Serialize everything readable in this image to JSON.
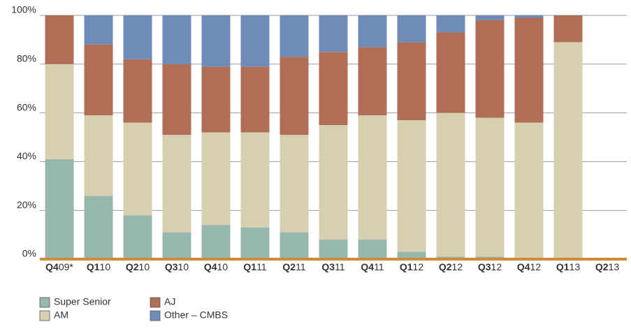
{
  "chart_data": {
    "type": "stacked_bar",
    "categories": [
      "Q409*",
      "Q110",
      "Q210",
      "Q310",
      "Q410",
      "Q111",
      "Q211",
      "Q311",
      "Q411",
      "Q112",
      "Q212",
      "Q312",
      "Q412",
      "Q113",
      "Q213"
    ],
    "series": [
      {
        "name": "Super Senior",
        "color": "#96b8ab",
        "values": [
          41,
          26,
          18,
          11,
          14,
          13,
          11,
          8,
          8,
          3,
          1,
          1,
          0,
          0,
          null
        ]
      },
      {
        "name": "AM",
        "color": "#d6d0b1",
        "values": [
          39,
          33,
          38,
          40,
          38,
          39,
          40,
          47,
          51,
          54,
          59,
          57,
          56,
          89,
          null
        ]
      },
      {
        "name": "AJ",
        "color": "#b06f55",
        "values": [
          20,
          29,
          26,
          29,
          27,
          27,
          32,
          30,
          28,
          32,
          33,
          40,
          43,
          11,
          null
        ]
      },
      {
        "name": "Other – CMBS",
        "color": "#6f8bb8",
        "values": [
          0,
          12,
          18,
          20,
          21,
          21,
          17,
          15,
          13,
          11,
          7,
          2,
          1,
          0,
          null
        ]
      }
    ],
    "ylim": [
      0,
      100
    ],
    "yticks": [
      {
        "value": 0,
        "label": "0%"
      },
      {
        "value": 20,
        "label": "20%"
      },
      {
        "value": 40,
        "label": "40%"
      },
      {
        "value": 60,
        "label": "60%"
      },
      {
        "value": 80,
        "label": "80%"
      },
      {
        "value": 100,
        "label": "100%"
      }
    ],
    "grid": true,
    "baseline_color": "#d08a3a"
  }
}
